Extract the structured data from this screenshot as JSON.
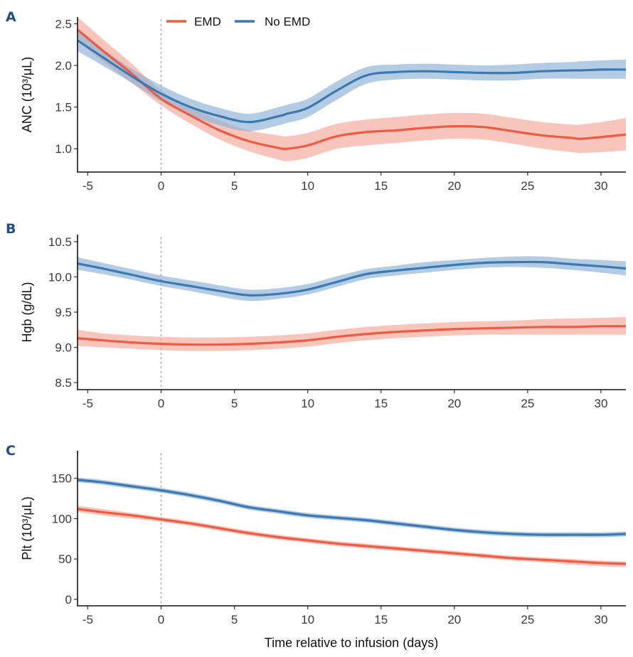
{
  "figure": {
    "legend": [
      {
        "name": "EMD",
        "color": "#EE5B43",
        "band": "#F4A99C"
      },
      {
        "name": "No EMD",
        "color": "#3C78B1",
        "band": "#8FB4D6"
      }
    ],
    "xlabel": "Time relative to infusion (days)",
    "reference_line_x": 0
  },
  "chart_data": [
    {
      "panel": "A",
      "type": "line",
      "title": "",
      "xlabel": "",
      "ylabel": "ANC (10³/μL)",
      "xlim": [
        -5.7,
        31.7
      ],
      "ylim": [
        0.72,
        2.58
      ],
      "xticks": [
        -5,
        0,
        5,
        10,
        15,
        20,
        25,
        30
      ],
      "yticks": [
        1.0,
        1.5,
        2.0,
        2.5
      ],
      "ytick_labels": [
        "1.0",
        "1.5",
        "2.0",
        "2.5"
      ],
      "grid": false,
      "legend_position": "top-center",
      "x": [
        -5.7,
        -4,
        -2,
        0,
        2,
        4,
        6,
        8,
        8.6,
        10,
        12,
        14,
        16,
        18,
        20,
        22,
        24,
        26,
        28,
        28.6,
        30,
        31.7
      ],
      "series": [
        {
          "name": "EMD",
          "values": [
            2.43,
            2.18,
            1.9,
            1.6,
            1.4,
            1.22,
            1.09,
            1.01,
            1.0,
            1.04,
            1.15,
            1.2,
            1.22,
            1.25,
            1.27,
            1.26,
            1.21,
            1.16,
            1.13,
            1.12,
            1.14,
            1.17
          ],
          "lower": [
            2.3,
            2.05,
            1.79,
            1.52,
            1.3,
            1.11,
            0.97,
            0.87,
            0.85,
            0.89,
            1.0,
            1.04,
            1.07,
            1.1,
            1.12,
            1.11,
            1.06,
            1.0,
            0.96,
            0.95,
            0.96,
            0.98
          ],
          "upper": [
            2.58,
            2.32,
            2.02,
            1.7,
            1.5,
            1.34,
            1.22,
            1.16,
            1.15,
            1.19,
            1.3,
            1.35,
            1.38,
            1.41,
            1.43,
            1.42,
            1.37,
            1.32,
            1.29,
            1.29,
            1.32,
            1.37
          ]
        },
        {
          "name": "No EMD",
          "values": [
            2.3,
            2.1,
            1.87,
            1.66,
            1.5,
            1.39,
            1.32,
            1.39,
            1.42,
            1.49,
            1.7,
            1.88,
            1.92,
            1.93,
            1.92,
            1.91,
            1.91,
            1.93,
            1.94,
            1.94,
            1.95,
            1.95
          ],
          "lower": [
            2.17,
            2.0,
            1.79,
            1.57,
            1.4,
            1.28,
            1.21,
            1.28,
            1.31,
            1.38,
            1.59,
            1.78,
            1.83,
            1.84,
            1.83,
            1.82,
            1.82,
            1.84,
            1.84,
            1.84,
            1.84,
            1.84
          ],
          "upper": [
            2.43,
            2.2,
            1.96,
            1.76,
            1.6,
            1.49,
            1.42,
            1.5,
            1.53,
            1.6,
            1.81,
            1.98,
            2.01,
            2.02,
            2.01,
            2.0,
            2.01,
            2.03,
            2.04,
            2.05,
            2.06,
            2.07
          ]
        }
      ]
    },
    {
      "panel": "B",
      "type": "line",
      "title": "",
      "xlabel": "",
      "ylabel": "Hgb (g/dL)",
      "xlim": [
        -5.7,
        31.7
      ],
      "ylim": [
        8.4,
        10.6
      ],
      "xticks": [
        -5,
        0,
        5,
        10,
        15,
        20,
        25,
        30
      ],
      "yticks": [
        8.5,
        9.0,
        9.5,
        10.0,
        10.5
      ],
      "ytick_labels": [
        "8.5",
        "9.0",
        "9.5",
        "10.0",
        "10.5"
      ],
      "grid": false,
      "x": [
        -5.7,
        -4,
        -2,
        0,
        2,
        4,
        6,
        8,
        10,
        12,
        14,
        16,
        18,
        20,
        22,
        24,
        26,
        28,
        30,
        31.7
      ],
      "series": [
        {
          "name": "EMD",
          "values": [
            9.13,
            9.1,
            9.07,
            9.05,
            9.04,
            9.04,
            9.05,
            9.07,
            9.1,
            9.15,
            9.19,
            9.22,
            9.24,
            9.26,
            9.27,
            9.28,
            9.29,
            9.29,
            9.3,
            9.3
          ],
          "lower": [
            9.02,
            9.0,
            8.98,
            8.96,
            8.95,
            8.95,
            8.96,
            8.98,
            9.01,
            9.06,
            9.1,
            9.13,
            9.15,
            9.17,
            9.18,
            9.18,
            9.18,
            9.18,
            9.18,
            9.18
          ],
          "upper": [
            9.25,
            9.2,
            9.17,
            9.15,
            9.14,
            9.14,
            9.15,
            9.17,
            9.2,
            9.25,
            9.29,
            9.32,
            9.34,
            9.36,
            9.37,
            9.38,
            9.4,
            9.41,
            9.42,
            9.43
          ]
        },
        {
          "name": "No EMD",
          "values": [
            10.19,
            10.12,
            10.03,
            9.94,
            9.87,
            9.8,
            9.74,
            9.76,
            9.82,
            9.93,
            10.04,
            10.09,
            10.13,
            10.17,
            10.2,
            10.21,
            10.21,
            10.18,
            10.15,
            10.12
          ],
          "lower": [
            10.1,
            10.04,
            9.96,
            9.87,
            9.8,
            9.72,
            9.66,
            9.69,
            9.75,
            9.86,
            9.97,
            10.02,
            10.06,
            10.1,
            10.13,
            10.14,
            10.13,
            10.1,
            10.06,
            10.02
          ],
          "upper": [
            10.28,
            10.2,
            10.11,
            10.02,
            9.95,
            9.88,
            9.82,
            9.84,
            9.9,
            10.01,
            10.11,
            10.16,
            10.21,
            10.24,
            10.27,
            10.29,
            10.29,
            10.26,
            10.24,
            10.22
          ]
        }
      ]
    },
    {
      "panel": "C",
      "type": "line",
      "title": "",
      "xlabel": "Time relative to infusion (days)",
      "ylabel": "Plt (10³/μL)",
      "xlim": [
        -5.7,
        31.7
      ],
      "ylim": [
        -8,
        184
      ],
      "xticks": [
        -5,
        0,
        5,
        10,
        15,
        20,
        25,
        30
      ],
      "yticks": [
        0,
        50,
        100,
        150
      ],
      "ytick_labels": [
        "0",
        "50",
        "100",
        "150"
      ],
      "grid": false,
      "x": [
        -5.7,
        -4,
        -2,
        0,
        2,
        4,
        6,
        8,
        10,
        12,
        14,
        16,
        18,
        20,
        22,
        24,
        26,
        28,
        30,
        31.7
      ],
      "series": [
        {
          "name": "EMD",
          "values": [
            112,
            108,
            104,
            99,
            94,
            88,
            82,
            77,
            73,
            69,
            66,
            63,
            60,
            57,
            54,
            51,
            49,
            47,
            45,
            44
          ],
          "lower": [
            108,
            104,
            100,
            96,
            91,
            85,
            79,
            74,
            70,
            66,
            63,
            60,
            57,
            54,
            51,
            48,
            46,
            43,
            41,
            40
          ],
          "upper": [
            116,
            112,
            107,
            102,
            97,
            91,
            85,
            80,
            76,
            72,
            69,
            66,
            63,
            60,
            57,
            54,
            52,
            50,
            48,
            47
          ]
        },
        {
          "name": "No EMD",
          "values": [
            148,
            145,
            140,
            135,
            129,
            122,
            114,
            109,
            104,
            101,
            98,
            94,
            90,
            86,
            83,
            81,
            80,
            80,
            80,
            81
          ],
          "lower": [
            145,
            142,
            137,
            132,
            126,
            119,
            111,
            106,
            101,
            98,
            95,
            91,
            87,
            83,
            80,
            78,
            77,
            77,
            77,
            78
          ],
          "upper": [
            151,
            148,
            143,
            138,
            132,
            125,
            117,
            112,
            107,
            104,
            101,
            97,
            93,
            89,
            86,
            84,
            83,
            83,
            83,
            84
          ]
        }
      ]
    }
  ]
}
